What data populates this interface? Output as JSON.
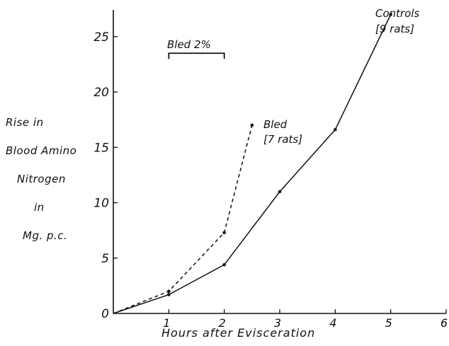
{
  "chart_data": {
    "type": "line",
    "xlabel": "Hours after Evisceration",
    "ylabel_lines": [
      "Rise in",
      "Blood Amino",
      "Nitrogen",
      "in",
      "Mg. p.c."
    ],
    "xlim": [
      0,
      6
    ],
    "ylim": [
      0,
      27
    ],
    "x_ticks": [
      0,
      1,
      2,
      3,
      4,
      5,
      6
    ],
    "x_tick_labels": [
      "1",
      "2",
      "3",
      "4",
      "5",
      "6"
    ],
    "y_ticks": [
      0,
      5,
      10,
      15,
      20,
      25
    ],
    "y_tick_labels": [
      "0",
      "5",
      "10",
      "15",
      "20",
      "25"
    ],
    "grid": false,
    "series": [
      {
        "name": "Controls [9 rats]",
        "style": "solid",
        "x": [
          0,
          1,
          2,
          3,
          4,
          5
        ],
        "y": [
          0,
          1.7,
          4.4,
          11.0,
          16.6,
          27.0
        ]
      },
      {
        "name": "Bled [7 rats]",
        "style": "dashed",
        "x": [
          0,
          1,
          2,
          2.5
        ],
        "y": [
          0,
          2.0,
          7.3,
          17.0
        ]
      }
    ],
    "annotations": {
      "bled_bracket": {
        "label": "Bled 2%",
        "x_start": 1,
        "x_end": 2,
        "y": 23.5
      },
      "controls_label": [
        "Controls",
        "[9 rats]"
      ],
      "bled_label": [
        "Bled",
        "[7 rats]"
      ]
    },
    "colors": {
      "ink": "#111111",
      "background": "#ffffff"
    }
  }
}
